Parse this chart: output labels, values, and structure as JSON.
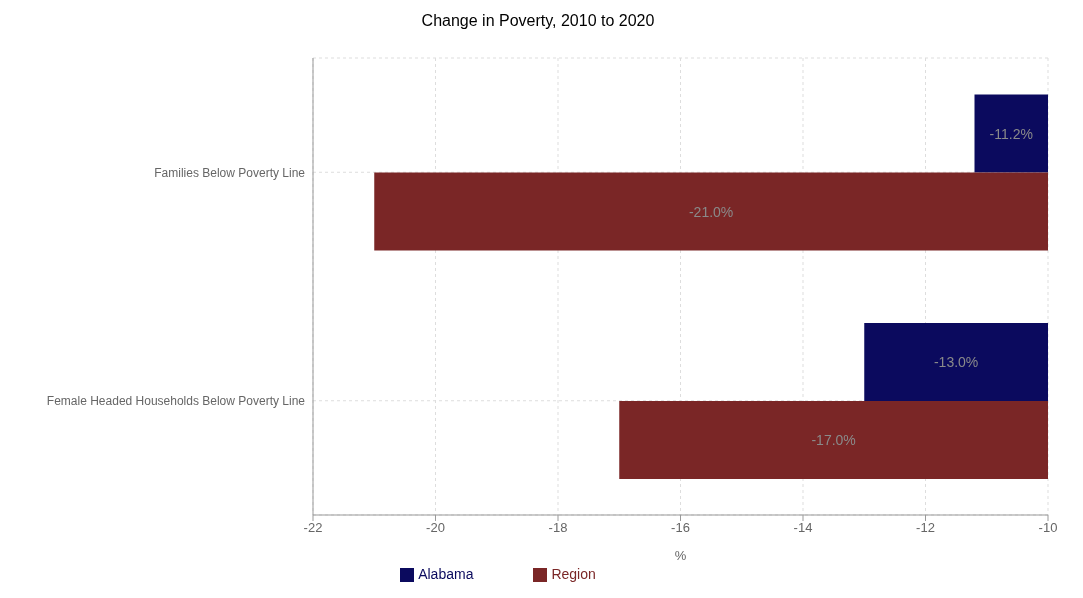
{
  "chart_data": {
    "type": "bar",
    "orientation": "horizontal",
    "title": "Change in Poverty, 2010 to 2020",
    "xlabel": "%",
    "categories": [
      "Families Below Poverty Line",
      "Female Headed Households Below Poverty Line"
    ],
    "series": [
      {
        "name": "Alabama",
        "color": "#0b0a5e",
        "values": [
          -11.2,
          -13.0
        ],
        "value_labels": [
          "-11.2%",
          "-13.0%"
        ]
      },
      {
        "name": "Region",
        "color": "#7a2626",
        "values": [
          -21.0,
          -17.0
        ],
        "value_labels": [
          "-21.0%",
          "-17.0%"
        ]
      }
    ],
    "xlim": [
      -22,
      -10
    ],
    "xticks": [
      -22,
      -20,
      -18,
      -16,
      -14,
      -12,
      -10
    ],
    "grid": true,
    "legend": "bottom"
  }
}
